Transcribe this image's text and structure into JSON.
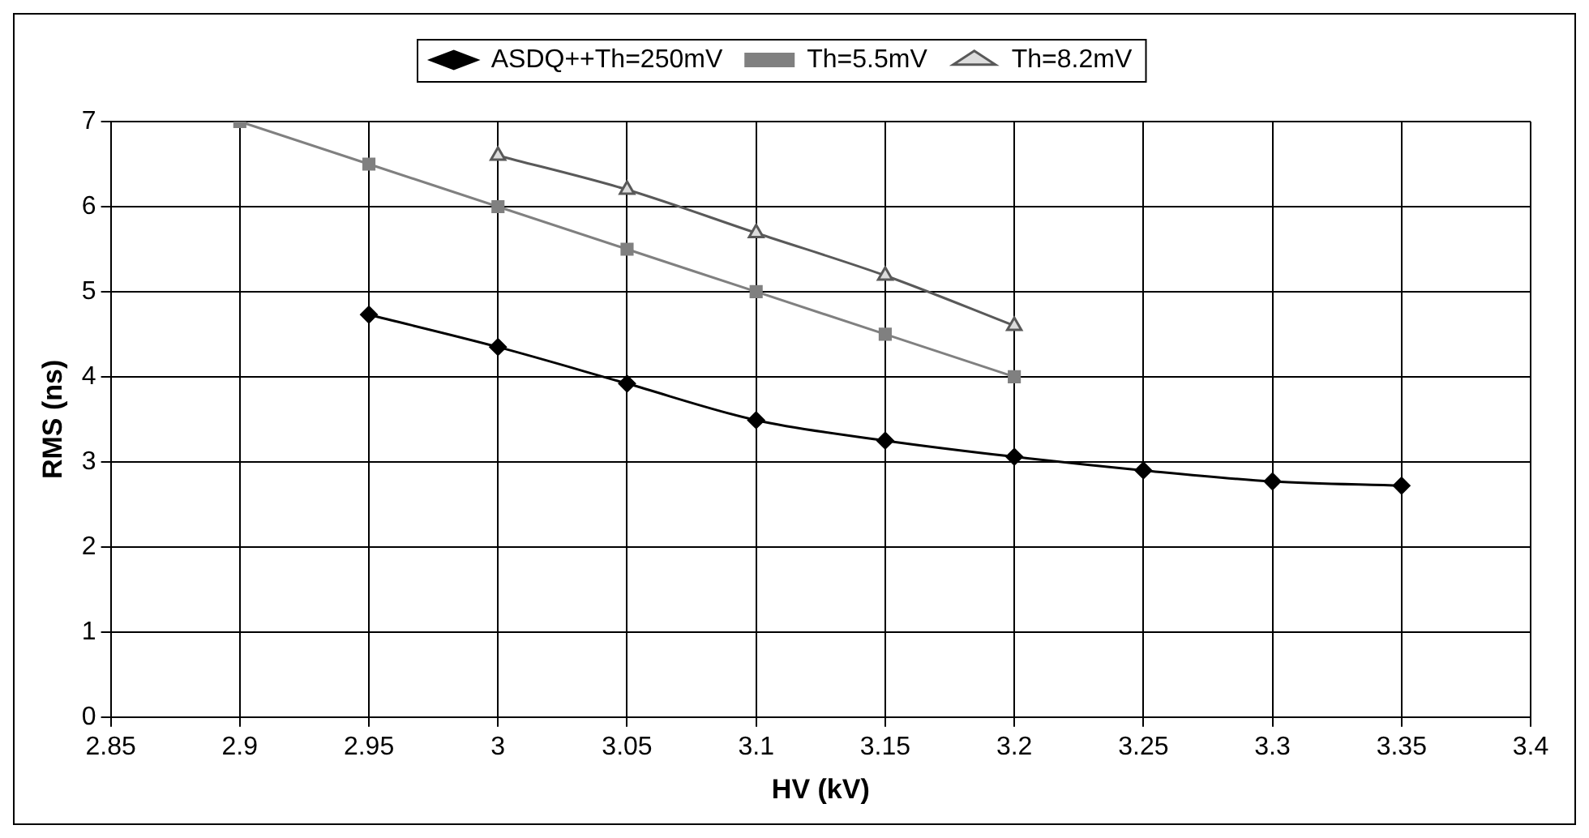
{
  "chart_data": {
    "type": "line",
    "xlabel": "HV (kV)",
    "ylabel": "RMS (ns)",
    "legend": "top",
    "grid": true,
    "xlim": [
      2.85,
      3.4
    ],
    "xticks": [
      2.85,
      2.9,
      2.95,
      3,
      3.05,
      3.1,
      3.15,
      3.2,
      3.25,
      3.3,
      3.35,
      3.4
    ],
    "ylim": [
      0,
      7
    ],
    "yticks": [
      0,
      1,
      2,
      3,
      4,
      5,
      6,
      7
    ],
    "series": [
      {
        "name": "ASDQ++Th=250mV",
        "color": "#000000",
        "marker": "diamond",
        "x": [
          2.95,
          3,
          3.05,
          3.1,
          3.15,
          3.2,
          3.25,
          3.3,
          3.35
        ],
        "values": [
          4.73,
          4.35,
          3.92,
          3.49,
          3.25,
          3.06,
          2.9,
          2.77,
          2.72
        ]
      },
      {
        "name": "Th=5.5mV",
        "color": "#808080",
        "marker": "square",
        "x": [
          2.9,
          2.95,
          3,
          3.05,
          3.1,
          3.15,
          3.2
        ],
        "values": [
          7,
          6.5,
          6,
          5.5,
          5,
          4.5,
          4
        ]
      },
      {
        "name": "Th=8.2mV",
        "color": "#595959",
        "marker": "triangle",
        "x": [
          3,
          3.05,
          3.1,
          3.15,
          3.2
        ],
        "values": [
          6.6,
          6.2,
          5.69,
          5.19,
          4.6
        ]
      }
    ]
  }
}
